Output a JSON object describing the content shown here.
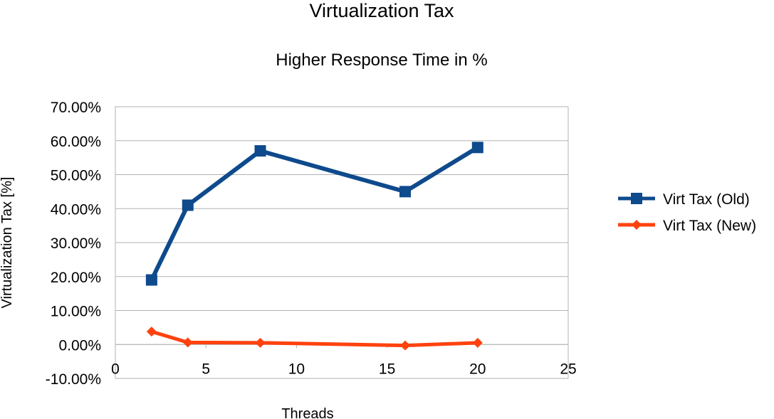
{
  "chart_data": {
    "type": "line",
    "title": "Virtualization Tax",
    "subtitle": "Higher Response Time in %",
    "xlabel": "Threads",
    "ylabel": "Virtualization Tax [%]",
    "xlim": [
      0,
      25
    ],
    "ylim": [
      -0.1,
      0.7
    ],
    "x_ticks": [
      "0",
      "5",
      "10",
      "15",
      "20",
      "25"
    ],
    "y_ticks": [
      "70.00%",
      "60.00%",
      "50.00%",
      "40.00%",
      "30.00%",
      "20.00%",
      "10.00%",
      "0.00%",
      "-10.00%"
    ],
    "grid": true,
    "legend_position": "right",
    "series": [
      {
        "name": "Virt Tax (Old)",
        "color": "#0e4a8c",
        "marker": "square",
        "x": [
          2,
          4,
          8,
          16,
          20
        ],
        "y": [
          0.19,
          0.41,
          0.57,
          0.45,
          0.58
        ]
      },
      {
        "name": "Virt Tax (New)",
        "color": "#ff420e",
        "marker": "diamond",
        "x": [
          2,
          4,
          8,
          16,
          20
        ],
        "y": [
          0.038,
          0.006,
          0.005,
          -0.003,
          0.005
        ]
      }
    ]
  }
}
